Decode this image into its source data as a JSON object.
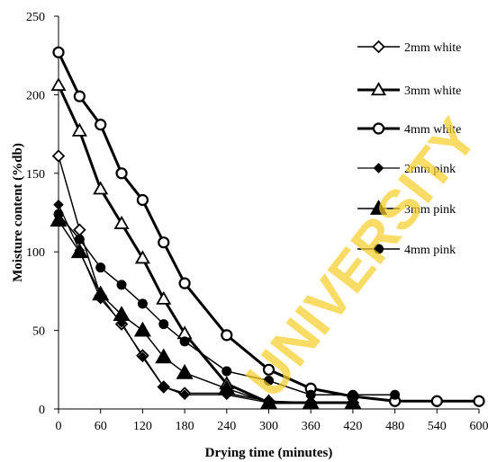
{
  "chart_data": {
    "type": "line",
    "xlabel": "Drying time (minutes)",
    "ylabel": "Moisture content (%db)",
    "xlim": [
      0,
      600
    ],
    "ylim": [
      0,
      250
    ],
    "x_ticks": [
      "0",
      "60",
      "120",
      "180",
      "240",
      "300",
      "360",
      "420",
      "480",
      "540",
      "600"
    ],
    "y_ticks": [
      "0",
      "50",
      "100",
      "150",
      "200",
      "250"
    ],
    "grid": false,
    "legend_position": "top-right",
    "watermark": "UNIVERSITY",
    "series": [
      {
        "name": "2mm white",
        "marker": "diamond-open",
        "x": [
          0,
          30,
          60,
          90,
          120,
          150,
          180,
          240,
          300,
          360,
          420
        ],
        "y": [
          161,
          114,
          72,
          54,
          34,
          14,
          10,
          10,
          5,
          4,
          4
        ]
      },
      {
        "name": "3mm white",
        "marker": "triangle-open",
        "x": [
          0,
          30,
          60,
          90,
          120,
          150,
          180,
          240,
          300,
          360,
          420
        ],
        "y": [
          206,
          177,
          140,
          118,
          96,
          70,
          48,
          16,
          4,
          4,
          4
        ]
      },
      {
        "name": "4mm white",
        "marker": "circle-open",
        "x": [
          0,
          30,
          60,
          90,
          120,
          150,
          180,
          240,
          300,
          360,
          420,
          480,
          540,
          600
        ],
        "y": [
          227,
          199,
          181,
          150,
          133,
          106,
          80,
          47,
          25,
          13,
          8,
          5,
          5,
          5
        ]
      },
      {
        "name": "2mm pink",
        "marker": "diamond-filled",
        "x": [
          0,
          30,
          60,
          90,
          120,
          150,
          180,
          240,
          300,
          360,
          420
        ],
        "y": [
          130,
          101,
          70,
          55,
          33,
          14,
          9,
          9,
          4,
          4,
          4
        ]
      },
      {
        "name": "3mm pink",
        "marker": "triangle-filled",
        "x": [
          0,
          30,
          60,
          90,
          120,
          150,
          180,
          240,
          300,
          360,
          420
        ],
        "y": [
          120,
          100,
          73,
          60,
          50,
          33,
          23,
          13,
          4,
          4,
          4
        ]
      },
      {
        "name": "4mm pink",
        "marker": "circle-filled",
        "x": [
          0,
          30,
          60,
          90,
          120,
          150,
          180,
          240,
          300,
          360,
          420,
          480
        ],
        "y": [
          124,
          108,
          90,
          79,
          67,
          54,
          43,
          24,
          18,
          9,
          9,
          9
        ]
      }
    ]
  }
}
